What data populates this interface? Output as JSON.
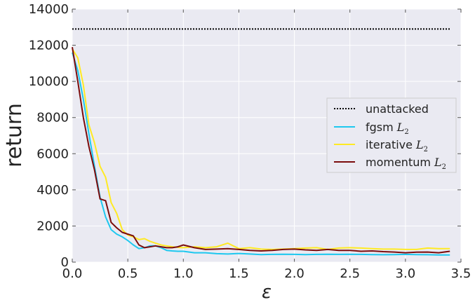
{
  "chart_data": {
    "type": "line",
    "title": "",
    "xlabel": "ε",
    "ylabel": "return",
    "xlim": [
      0.0,
      3.5
    ],
    "ylim": [
      0,
      14000
    ],
    "x_ticks": [
      "0.0",
      "0.5",
      "1.0",
      "1.5",
      "2.0",
      "2.5",
      "3.0",
      "3.5"
    ],
    "y_ticks": [
      "0",
      "2000",
      "4000",
      "6000",
      "8000",
      "10000",
      "12000",
      "14000"
    ],
    "grid": true,
    "legend_position": "center-right",
    "baseline": {
      "name": "unattacked",
      "value": 12900,
      "x_range": [
        0.0,
        3.4
      ],
      "color": "#000000",
      "style": "dotted"
    },
    "series": [
      {
        "name": "fgsm",
        "subscript": "2",
        "color": "#1ec8ef",
        "x": [
          0.0,
          0.05,
          0.1,
          0.15,
          0.2,
          0.25,
          0.3,
          0.35,
          0.4,
          0.45,
          0.5,
          0.55,
          0.6,
          0.65,
          0.7,
          0.75,
          0.8,
          0.85,
          0.9,
          0.95,
          1.0,
          1.1,
          1.2,
          1.3,
          1.4,
          1.5,
          1.6,
          1.7,
          1.8,
          1.9,
          2.0,
          2.1,
          2.2,
          2.3,
          2.4,
          2.5,
          2.6,
          2.7,
          2.8,
          2.9,
          3.0,
          3.1,
          3.2,
          3.3,
          3.4
        ],
        "values": [
          11600,
          10600,
          9000,
          7100,
          5300,
          3600,
          2500,
          1800,
          1550,
          1400,
          1200,
          950,
          750,
          800,
          900,
          900,
          800,
          650,
          620,
          600,
          600,
          520,
          520,
          470,
          450,
          480,
          450,
          420,
          430,
          440,
          430,
          420,
          430,
          440,
          430,
          440,
          430,
          420,
          410,
          420,
          430,
          420,
          410,
          400,
          400
        ]
      },
      {
        "name": "iterative",
        "subscript": "2",
        "color": "#ffea23",
        "x": [
          0.0,
          0.05,
          0.1,
          0.15,
          0.2,
          0.25,
          0.3,
          0.35,
          0.4,
          0.45,
          0.5,
          0.55,
          0.6,
          0.65,
          0.7,
          0.75,
          0.8,
          0.85,
          0.9,
          0.95,
          1.0,
          1.1,
          1.2,
          1.3,
          1.4,
          1.5,
          1.6,
          1.7,
          1.8,
          1.9,
          2.0,
          2.1,
          2.2,
          2.3,
          2.4,
          2.5,
          2.6,
          2.7,
          2.8,
          2.9,
          3.0,
          3.1,
          3.2,
          3.3,
          3.4
        ],
        "values": [
          11800,
          11300,
          9800,
          7600,
          6600,
          5300,
          4700,
          3300,
          2700,
          1800,
          1500,
          1400,
          1250,
          1300,
          1150,
          1050,
          950,
          900,
          850,
          820,
          800,
          850,
          800,
          850,
          1050,
          750,
          800,
          720,
          700,
          720,
          750,
          780,
          800,
          700,
          780,
          800,
          780,
          750,
          720,
          720,
          700,
          700,
          780,
          750,
          750
        ]
      },
      {
        "name": "momentum",
        "subscript": "2",
        "color": "#7a0c0c",
        "x": [
          0.0,
          0.05,
          0.1,
          0.15,
          0.2,
          0.25,
          0.3,
          0.35,
          0.4,
          0.45,
          0.5,
          0.55,
          0.6,
          0.65,
          0.7,
          0.75,
          0.8,
          0.85,
          0.9,
          0.95,
          1.0,
          1.1,
          1.2,
          1.3,
          1.4,
          1.5,
          1.6,
          1.7,
          1.8,
          1.9,
          2.0,
          2.1,
          2.2,
          2.3,
          2.4,
          2.5,
          2.6,
          2.7,
          2.8,
          2.9,
          3.0,
          3.1,
          3.2,
          3.3,
          3.4
        ],
        "values": [
          11900,
          10000,
          8000,
          6400,
          5100,
          3500,
          3400,
          2200,
          1900,
          1650,
          1550,
          1450,
          950,
          800,
          850,
          900,
          850,
          800,
          800,
          850,
          950,
          800,
          700,
          720,
          750,
          700,
          650,
          620,
          650,
          700,
          720,
          680,
          650,
          700,
          650,
          650,
          600,
          620,
          580,
          560,
          520,
          550,
          560,
          520,
          600
        ]
      }
    ]
  }
}
